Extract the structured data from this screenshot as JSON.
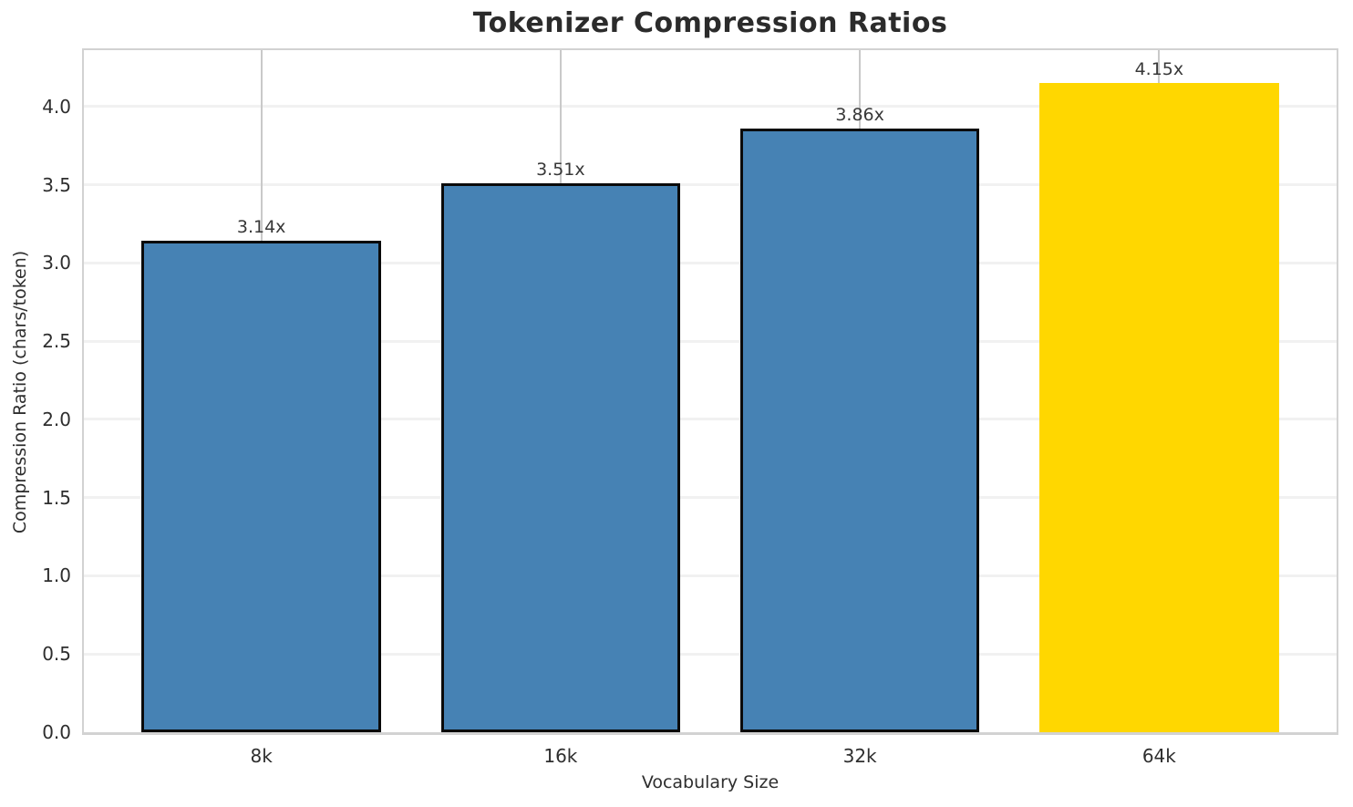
{
  "chart_data": {
    "type": "bar",
    "title": "Tokenizer Compression Ratios",
    "xlabel": "Vocabulary Size",
    "ylabel": "Compression Ratio (chars/token)",
    "categories": [
      "8k",
      "16k",
      "32k",
      "64k"
    ],
    "values": [
      3.14,
      3.51,
      3.86,
      4.15
    ],
    "bar_value_labels": [
      "3.14x",
      "3.51x",
      "3.86x",
      "4.15x"
    ],
    "bar_colors": [
      "#4682B4",
      "#4682B4",
      "#4682B4",
      "#FFD700"
    ],
    "bar_edge_colors": [
      "#0a0a0a",
      "#0a0a0a",
      "#0a0a0a",
      "none"
    ],
    "ylim": [
      0,
      4.36
    ],
    "yticks": [
      0.0,
      0.5,
      1.0,
      1.5,
      2.0,
      2.5,
      3.0,
      3.5,
      4.0
    ],
    "ytick_labels": [
      "0.0",
      "0.5",
      "1.0",
      "1.5",
      "2.0",
      "2.5",
      "3.0",
      "3.5",
      "4.0"
    ],
    "legend": "none",
    "grid": {
      "horizontal": true,
      "vertical": true,
      "h_color": "#f1f1f1",
      "v_color": "#c9c9c9"
    },
    "colors": {
      "primary_bar": "#4682B4",
      "highlight_bar": "#FFD700",
      "spine": "#d2d2d2",
      "text": "#2e2e2e",
      "title_text": "#2b2b2b"
    }
  }
}
